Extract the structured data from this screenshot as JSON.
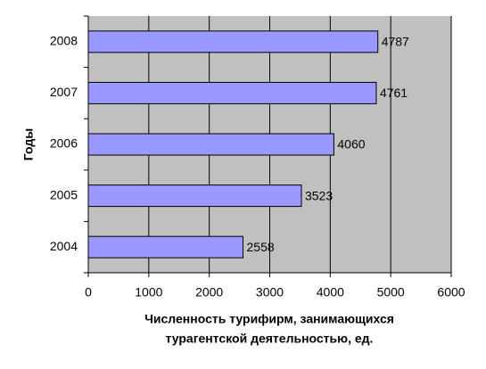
{
  "chart_data": {
    "type": "bar",
    "orientation": "horizontal",
    "categories": [
      "2008",
      "2007",
      "2006",
      "2005",
      "2004"
    ],
    "values": [
      4787,
      4761,
      4060,
      3523,
      2558
    ],
    "color": "#9999ff",
    "xlim": [
      0,
      6000
    ],
    "xticks": [
      0,
      1000,
      2000,
      3000,
      4000,
      5000,
      6000
    ],
    "grid": true,
    "x_label": [
      "Численность турифирм, занимающихся",
      "турагентской деятельностью, ед."
    ],
    "y_label": "Годы"
  }
}
